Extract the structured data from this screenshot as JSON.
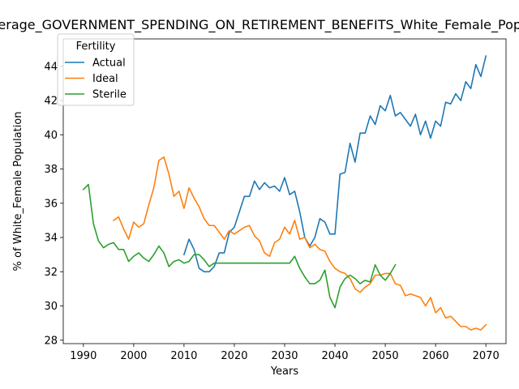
{
  "chart_data": {
    "type": "line",
    "title": "Average_GOVERNMENT_SPENDING_ON_RETIREMENT_BENEFITS_White_Female_Population",
    "xlabel": "Years",
    "ylabel": "% of White_Female Population",
    "xlim": [
      1986,
      2074
    ],
    "ylim": [
      27.8,
      45.6
    ],
    "xticks": [
      1990,
      2000,
      2010,
      2020,
      2030,
      2040,
      2050,
      2060,
      2070
    ],
    "yticks": [
      28,
      30,
      32,
      34,
      36,
      38,
      40,
      42,
      44
    ],
    "grid": false,
    "legend": {
      "title": "Fertility",
      "position": "top-left"
    },
    "series": [
      {
        "name": "Actual",
        "color": "#1f77b4",
        "x": [
          2010,
          2011,
          2012,
          2013,
          2014,
          2015,
          2016,
          2017,
          2018,
          2019,
          2020,
          2021,
          2022,
          2023,
          2024,
          2025,
          2026,
          2027,
          2028,
          2029,
          2030,
          2031,
          2032,
          2033,
          2034,
          2035,
          2036,
          2037,
          2038,
          2039,
          2040,
          2041,
          2042,
          2043,
          2044,
          2045,
          2046,
          2047,
          2048,
          2049,
          2050,
          2051,
          2052,
          2053,
          2054,
          2055,
          2056,
          2057,
          2058,
          2059,
          2060,
          2061,
          2062,
          2063,
          2064,
          2065,
          2066,
          2067,
          2068,
          2069,
          2070
        ],
        "values": [
          33.0,
          33.9,
          33.3,
          32.2,
          32.0,
          32.0,
          32.3,
          33.1,
          33.1,
          34.3,
          34.6,
          35.5,
          36.4,
          36.4,
          37.3,
          36.8,
          37.2,
          36.9,
          37.0,
          36.7,
          37.5,
          36.5,
          36.7,
          35.5,
          34.0,
          33.5,
          34.0,
          35.1,
          34.9,
          34.2,
          34.2,
          37.7,
          37.8,
          39.5,
          38.4,
          40.1,
          40.1,
          41.1,
          40.6,
          41.7,
          41.4,
          42.3,
          41.1,
          41.3,
          40.9,
          40.5,
          41.2,
          40.0,
          40.8,
          39.8,
          40.8,
          40.5,
          41.9,
          41.8,
          42.4,
          42.0,
          43.1,
          42.7,
          44.1,
          43.4,
          44.6
        ]
      },
      {
        "name": "Ideal",
        "color": "#ff7f0e",
        "x": [
          1996,
          1997,
          1998,
          1999,
          2000,
          2001,
          2002,
          2003,
          2004,
          2005,
          2006,
          2007,
          2008,
          2009,
          2010,
          2011,
          2012,
          2013,
          2014,
          2015,
          2016,
          2017,
          2018,
          2019,
          2020,
          2021,
          2022,
          2023,
          2024,
          2025,
          2026,
          2027,
          2028,
          2029,
          2030,
          2031,
          2032,
          2033,
          2034,
          2035,
          2036,
          2037,
          2038,
          2039,
          2040,
          2041,
          2042,
          2043,
          2044,
          2045,
          2046,
          2047,
          2048,
          2049,
          2050,
          2051,
          2052,
          2053,
          2054,
          2055,
          2056,
          2057,
          2058,
          2059,
          2060,
          2061,
          2062,
          2063,
          2064,
          2065,
          2066,
          2067,
          2068,
          2069,
          2070
        ],
        "values": [
          35.0,
          35.2,
          34.5,
          33.9,
          34.9,
          34.6,
          34.8,
          35.9,
          36.9,
          38.5,
          38.7,
          37.7,
          36.4,
          36.7,
          35.7,
          36.9,
          36.3,
          35.8,
          35.1,
          34.7,
          34.7,
          34.3,
          33.9,
          34.4,
          34.2,
          34.4,
          34.6,
          34.7,
          34.1,
          33.8,
          33.1,
          32.9,
          33.7,
          33.9,
          34.6,
          34.2,
          35.0,
          33.9,
          34.0,
          33.4,
          33.6,
          33.3,
          33.2,
          32.6,
          32.2,
          32.0,
          31.9,
          31.6,
          31.0,
          30.8,
          31.1,
          31.3,
          31.8,
          31.8,
          31.9,
          31.9,
          31.3,
          31.2,
          30.6,
          30.7,
          30.6,
          30.5,
          30.0,
          30.5,
          29.6,
          29.9,
          29.3,
          29.4,
          29.1,
          28.8,
          28.8,
          28.6,
          28.7,
          28.6,
          28.9
        ]
      },
      {
        "name": "Sterile",
        "color": "#2ca02c",
        "x": [
          1990,
          1991,
          1992,
          1993,
          1994,
          1995,
          1996,
          1997,
          1998,
          1999,
          2000,
          2001,
          2002,
          2003,
          2004,
          2005,
          2006,
          2007,
          2008,
          2009,
          2010,
          2011,
          2012,
          2013,
          2014,
          2015,
          2016,
          2017,
          2018,
          2019,
          2020,
          2021,
          2022,
          2023,
          2024,
          2025,
          2026,
          2027,
          2028,
          2029,
          2030,
          2031,
          2032,
          2033,
          2034,
          2035,
          2036,
          2037,
          2038,
          2039,
          2040,
          2041,
          2042,
          2043,
          2044,
          2045,
          2046,
          2047,
          2048,
          2049,
          2050,
          2051,
          2052
        ],
        "values": [
          36.8,
          37.1,
          34.8,
          33.8,
          33.4,
          33.6,
          33.7,
          33.3,
          33.3,
          32.6,
          32.9,
          33.1,
          32.8,
          32.6,
          33.0,
          33.5,
          33.1,
          32.3,
          32.6,
          32.7,
          32.5,
          32.6,
          33.0,
          33.0,
          32.7,
          32.3,
          32.5,
          32.5,
          32.5,
          32.5,
          32.5,
          32.5,
          32.5,
          32.5,
          32.5,
          32.5,
          32.5,
          32.5,
          32.5,
          32.5,
          32.5,
          32.5,
          32.9,
          32.2,
          31.7,
          31.3,
          31.3,
          31.5,
          32.1,
          30.5,
          29.9,
          31.1,
          31.6,
          31.8,
          31.6,
          31.3,
          31.5,
          31.4,
          32.4,
          31.8,
          31.5,
          31.9,
          32.4
        ]
      }
    ]
  }
}
